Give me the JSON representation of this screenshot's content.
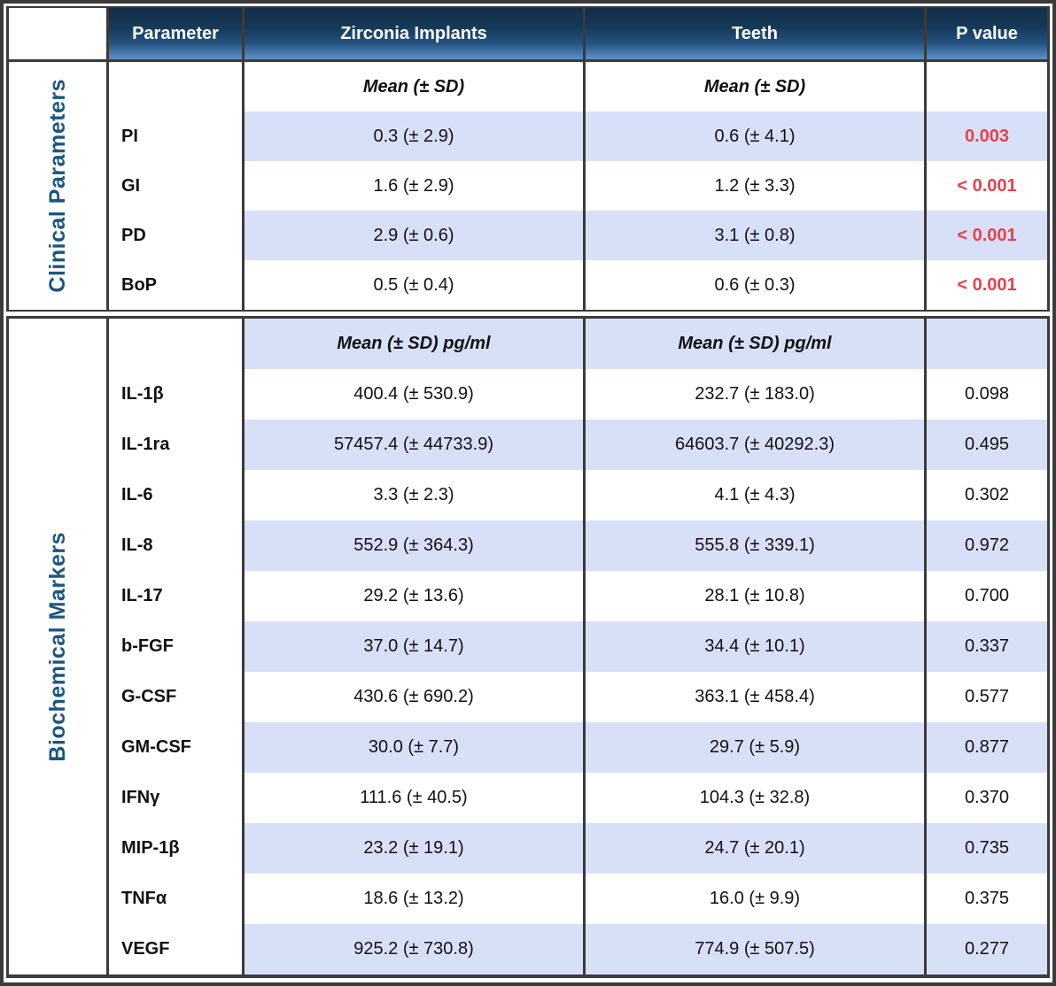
{
  "chart_data": {
    "type": "table",
    "columns": [
      "Parameter",
      "Zirconia Implants",
      "Teeth",
      "P value"
    ],
    "sections": [
      {
        "label": "Clinical Parameters",
        "unit_header": {
          "zirconia": "Mean (± SD)",
          "teeth": "Mean (± SD)",
          "p": "",
          "striped": false
        },
        "rows": [
          {
            "parameter": "PI",
            "zirconia": "0.3 (± 2.9)",
            "teeth": "0.6 (± 4.1)",
            "p": "0.003",
            "significant": true,
            "striped": true
          },
          {
            "parameter": "GI",
            "zirconia": "1.6 (± 2.9)",
            "teeth": "1.2 (± 3.3)",
            "p": "< 0.001",
            "significant": true,
            "striped": false
          },
          {
            "parameter": "PD",
            "zirconia": "2.9 (± 0.6)",
            "teeth": "3.1 (± 0.8)",
            "p": "< 0.001",
            "significant": true,
            "striped": true
          },
          {
            "parameter": "BoP",
            "zirconia": "0.5 (± 0.4)",
            "teeth": "0.6 (± 0.3)",
            "p": "< 0.001",
            "significant": true,
            "striped": false
          }
        ]
      },
      {
        "label": "Biochemical Markers",
        "unit_header": {
          "zirconia": "Mean (± SD) pg/ml",
          "teeth": "Mean (± SD) pg/ml",
          "p": "",
          "striped": true
        },
        "rows": [
          {
            "parameter": "IL-1β",
            "zirconia": "400.4 (± 530.9)",
            "teeth": "232.7 (± 183.0)",
            "p": "0.098",
            "significant": false,
            "striped": false
          },
          {
            "parameter": "IL-1ra",
            "zirconia": "57457.4 (± 44733.9)",
            "teeth": "64603.7 (± 40292.3)",
            "p": "0.495",
            "significant": false,
            "striped": true
          },
          {
            "parameter": "IL-6",
            "zirconia": "3.3 (± 2.3)",
            "teeth": "4.1 (± 4.3)",
            "p": "0.302",
            "significant": false,
            "striped": false
          },
          {
            "parameter": "IL-8",
            "zirconia": "552.9 (± 364.3)",
            "teeth": "555.8 (± 339.1)",
            "p": "0.972",
            "significant": false,
            "striped": true
          },
          {
            "parameter": "IL-17",
            "zirconia": "29.2 (± 13.6)",
            "teeth": "28.1 (± 10.8)",
            "p": "0.700",
            "significant": false,
            "striped": false
          },
          {
            "parameter": "b-FGF",
            "zirconia": "37.0 (± 14.7)",
            "teeth": "34.4 (± 10.1)",
            "p": "0.337",
            "significant": false,
            "striped": true
          },
          {
            "parameter": "G-CSF",
            "zirconia": "430.6 (± 690.2)",
            "teeth": "363.1 (± 458.4)",
            "p": "0.577",
            "significant": false,
            "striped": false
          },
          {
            "parameter": "GM-CSF",
            "zirconia": "30.0 (± 7.7)",
            "teeth": "29.7 (± 5.9)",
            "p": "0.877",
            "significant": false,
            "striped": true
          },
          {
            "parameter": "IFNγ",
            "zirconia": "111.6 (± 40.5)",
            "teeth": "104.3 (± 32.8)",
            "p": "0.370",
            "significant": false,
            "striped": false
          },
          {
            "parameter": "MIP-1β",
            "zirconia": "23.2 (± 19.1)",
            "teeth": "24.7 (± 20.1)",
            "p": "0.735",
            "significant": false,
            "striped": true
          },
          {
            "parameter": "TNFα",
            "zirconia": "18.6 (± 13.2)",
            "teeth": "16.0 (± 9.9)",
            "p": "0.375",
            "significant": false,
            "striped": false
          },
          {
            "parameter": "VEGF",
            "zirconia": "925.2 (± 730.8)",
            "teeth": "774.9 (± 507.5)",
            "p": "0.277",
            "significant": false,
            "striped": true
          }
        ]
      }
    ],
    "colors": {
      "header_gradient_top": "#122E48",
      "header_gradient_bottom": "#5B92C8",
      "row_stripe": "#D8E0F8",
      "significant_p": "#E8414B",
      "section_label": "#1B567E",
      "border": "#3B3B3B"
    },
    "layout": {
      "grid": "off",
      "legend": "none"
    }
  }
}
